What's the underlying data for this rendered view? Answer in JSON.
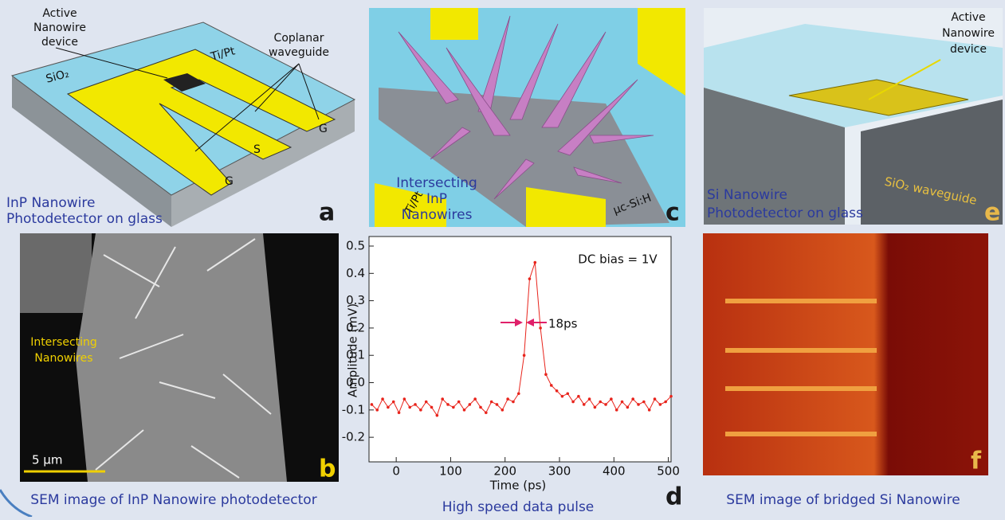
{
  "panels": {
    "a": {
      "letter": "a",
      "active_device": [
        "Active",
        "Nanowire",
        "device"
      ],
      "waveguide": [
        "Coplanar",
        "waveguide"
      ],
      "metal": "Ti/Pt",
      "substrate": "SiO₂",
      "pads": [
        "G",
        "S",
        "G"
      ],
      "caption": [
        "InP Nanowire",
        "Photodetector on glass"
      ]
    },
    "b": {
      "letter": "b",
      "annotation": [
        "Intersecting",
        "Nanowires"
      ],
      "scale": "5 μm",
      "caption": "SEM image of InP Nanowire photodetector"
    },
    "c": {
      "letter": "c",
      "metal": "Ti/Pt",
      "label": [
        "Intersecting",
        "InP",
        "Nanowires"
      ],
      "film": "μc-Si:H"
    },
    "e": {
      "letter": "e",
      "active_device": [
        "Active",
        "Nanowire",
        "device"
      ],
      "waveguide": "SiO₂ waveguide",
      "caption": [
        "Si Nanowire",
        "Photodetector on glass"
      ]
    },
    "f": {
      "letter": "f",
      "caption": "SEM image of bridged Si Nanowire"
    }
  },
  "chart_data": {
    "type": "line",
    "letter": "d",
    "caption": "High speed data pulse",
    "x_label": "Time (ps)",
    "y_label": "Amplitude (mV)",
    "annotations": [
      "DC bias = 1V",
      "18ps"
    ],
    "x": [
      -45,
      -35,
      -25,
      -15,
      -5,
      5,
      15,
      25,
      35,
      45,
      55,
      65,
      75,
      85,
      95,
      105,
      115,
      125,
      135,
      145,
      155,
      165,
      175,
      185,
      195,
      205,
      215,
      225,
      235,
      245,
      255,
      265,
      275,
      285,
      295,
      305,
      315,
      325,
      335,
      345,
      355,
      365,
      375,
      385,
      395,
      405,
      415,
      425,
      435,
      445,
      455,
      465,
      475,
      485,
      495,
      505
    ],
    "series": [
      {
        "color": "#e8241c",
        "values": [
          -0.08,
          -0.1,
          -0.06,
          -0.09,
          -0.07,
          -0.11,
          -0.06,
          -0.09,
          -0.08,
          -0.1,
          -0.07,
          -0.09,
          -0.12,
          -0.06,
          -0.08,
          -0.09,
          -0.07,
          -0.1,
          -0.08,
          -0.06,
          -0.09,
          -0.11,
          -0.07,
          -0.08,
          -0.1,
          -0.06,
          -0.07,
          -0.04,
          0.1,
          0.38,
          0.44,
          0.2,
          0.03,
          -0.01,
          -0.03,
          -0.05,
          -0.04,
          -0.07,
          -0.05,
          -0.08,
          -0.06,
          -0.09,
          -0.07,
          -0.08,
          -0.06,
          -0.1,
          -0.07,
          -0.09,
          -0.06,
          -0.08,
          -0.07,
          -0.1,
          -0.06,
          -0.08,
          -0.07,
          -0.05
        ]
      }
    ],
    "xlim": [
      -50,
      505
    ],
    "ylim": [
      -0.29,
      0.535
    ],
    "xticks": [
      0,
      100,
      200,
      300,
      400,
      500
    ],
    "yticks": [
      0.5,
      0.4,
      0.3,
      0.2,
      0.1,
      {
        "value": 0,
        "label": "0.0"
      },
      -0.1,
      -0.2
    ]
  }
}
